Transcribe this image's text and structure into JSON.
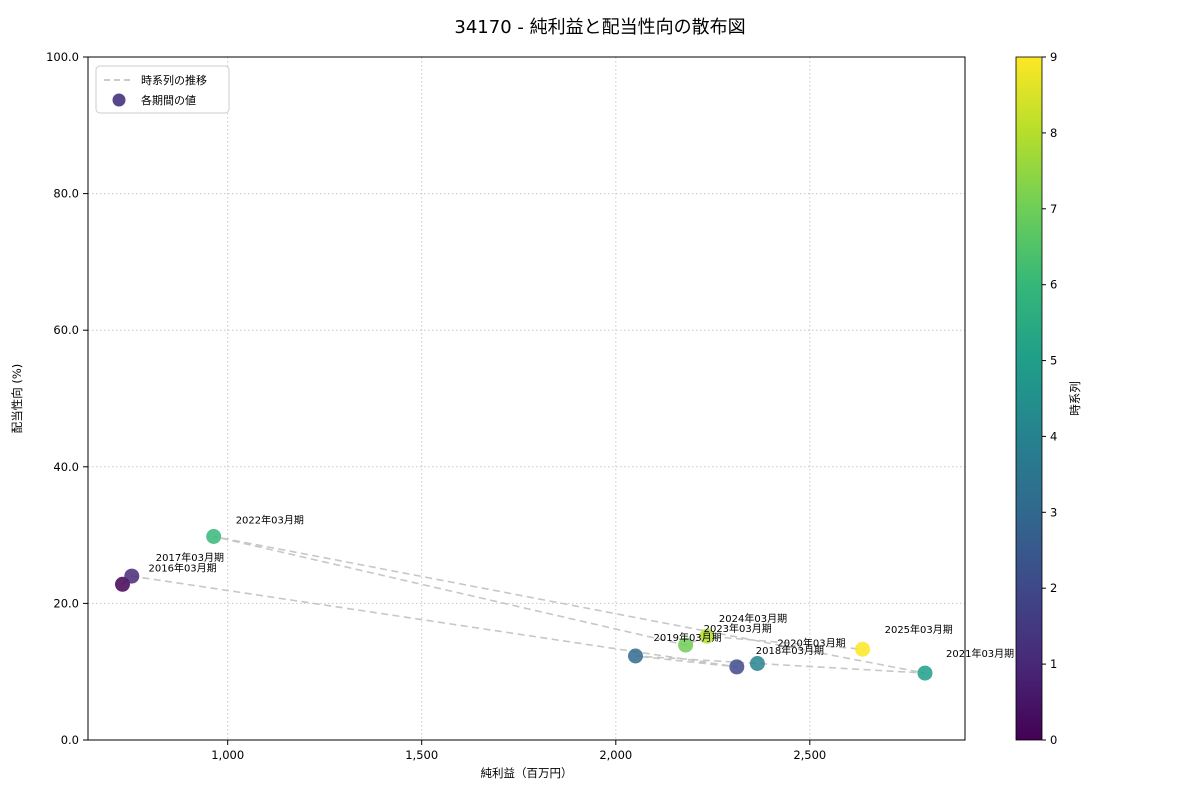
{
  "figure": {
    "title": "34170 - 純利益と配当性向の散布図"
  },
  "chart_data": {
    "type": "scatter",
    "title": "34170 - 純利益と配当性向の散布図",
    "xlabel": "純利益（百万円）",
    "ylabel": "配当性向 (%)",
    "xlim": [
      640,
      2900
    ],
    "ylim": [
      0,
      100
    ],
    "xticks": [
      1000,
      1500,
      2000,
      2500
    ],
    "xtick_labels": [
      "1,000",
      "1,500",
      "2,000",
      "2,500"
    ],
    "yticks": [
      0,
      20,
      40,
      60,
      80,
      100
    ],
    "ytick_labels": [
      "0.0",
      "20.0",
      "40.0",
      "60.0",
      "80.0",
      "100.0"
    ],
    "grid": true,
    "legend": {
      "position": "upper left",
      "items": [
        {
          "type": "dashed-line",
          "label": "時系列の推移",
          "color": "#bbbbbb"
        },
        {
          "type": "marker",
          "label": "各期間の値",
          "color": "#46327e"
        }
      ]
    },
    "colorbar": {
      "label": "時系列",
      "min": 0,
      "max": 9,
      "ticks": [
        0,
        1,
        2,
        3,
        4,
        5,
        6,
        7,
        8,
        9
      ],
      "colormap": "viridis",
      "colors": [
        "#440154",
        "#482878",
        "#3e4989",
        "#31688e",
        "#26828e",
        "#1f9e89",
        "#35b779",
        "#6ece58",
        "#b5de2b",
        "#fde725"
      ]
    },
    "trend_line": {
      "style": "dashed",
      "color": "#c7c7c7"
    },
    "points": [
      {
        "t": 0,
        "label": "2016年03月期",
        "x": 729,
        "y": 22.8,
        "color": "#440154",
        "label_offset": [
          26,
          -13
        ]
      },
      {
        "t": 1,
        "label": "2017年03月期",
        "x": 753,
        "y": 24.0,
        "color": "#482878",
        "label_offset": [
          24,
          -15
        ]
      },
      {
        "t": 2,
        "label": "2018年03月期",
        "x": 2312,
        "y": 10.7,
        "color": "#3e4989",
        "label_offset": [
          19,
          -13
        ]
      },
      {
        "t": 3,
        "label": "2019年03月期",
        "x": 2051,
        "y": 12.3,
        "color": "#31688e",
        "label_offset": [
          18,
          -15
        ]
      },
      {
        "t": 4,
        "label": "2020年03月期",
        "x": 2365,
        "y": 11.2,
        "color": "#26828e",
        "label_offset": [
          20,
          -17
        ]
      },
      {
        "t": 5,
        "label": "2021年03月期",
        "x": 2797,
        "y": 9.8,
        "color": "#1f9e89",
        "label_offset": [
          21,
          -16
        ]
      },
      {
        "t": 6,
        "label": "2022年03月期",
        "x": 964,
        "y": 29.8,
        "color": "#35b779",
        "label_offset": [
          22,
          -13
        ]
      },
      {
        "t": 7,
        "label": "2023年03月期",
        "x": 2180,
        "y": 13.9,
        "color": "#6ece58",
        "label_offset": [
          18,
          -13
        ]
      },
      {
        "t": 8,
        "label": "2024年03月期",
        "x": 2235,
        "y": 15.2,
        "color": "#b5de2b",
        "label_offset": [
          12,
          -14
        ]
      },
      {
        "t": 9,
        "label": "2025年03月期",
        "x": 2636,
        "y": 13.3,
        "color": "#fde725",
        "label_offset": [
          22,
          -16
        ]
      }
    ]
  }
}
